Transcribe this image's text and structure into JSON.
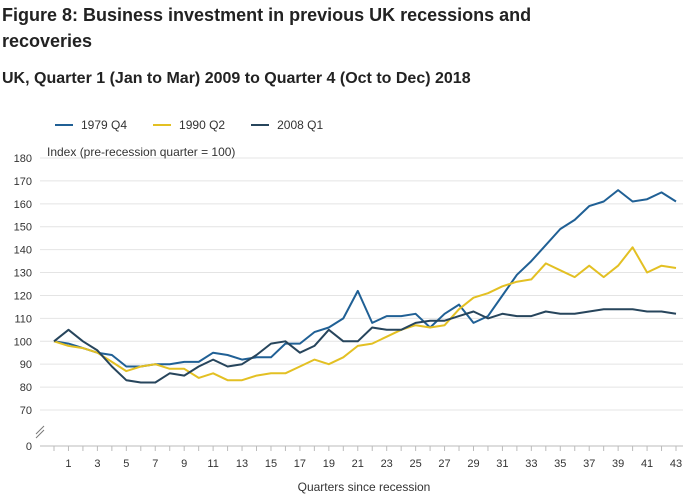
{
  "header": {
    "title": "Figure 8: Business investment in previous UK recessions and recoveries",
    "subtitle": "UK, Quarter 1 (Jan to Mar) 2009 to Quarter 4 (Oct to Dec) 2018"
  },
  "chart_data": {
    "type": "line",
    "ylabel": "Index (pre-recession quarter = 100)",
    "xlabel": "Quarters since recession",
    "x": [
      0,
      1,
      2,
      3,
      4,
      5,
      6,
      7,
      8,
      9,
      10,
      11,
      12,
      13,
      14,
      15,
      16,
      17,
      18,
      19,
      20,
      21,
      22,
      23,
      24,
      25,
      26,
      27,
      28,
      29,
      30,
      31,
      32,
      33,
      34,
      35,
      36,
      37,
      38,
      39,
      40,
      41,
      42,
      43
    ],
    "x_ticks": [
      1,
      3,
      5,
      7,
      9,
      11,
      13,
      15,
      17,
      19,
      21,
      23,
      25,
      27,
      29,
      31,
      33,
      35,
      37,
      39,
      41,
      43
    ],
    "y_ticks": [
      0,
      70,
      80,
      90,
      100,
      110,
      120,
      130,
      140,
      150,
      160,
      170,
      180
    ],
    "ylim": [
      0,
      180
    ],
    "y_axis_break": [
      0,
      70
    ],
    "legend_position": "top-left",
    "grid": "y",
    "series": [
      {
        "name": "1979 Q4",
        "color": "#206095",
        "values": [
          100,
          99,
          97,
          95,
          94,
          89,
          89,
          90,
          90,
          91,
          91,
          95,
          94,
          92,
          93,
          93,
          99,
          99,
          104,
          106,
          110,
          122,
          108,
          111,
          111,
          112,
          106,
          112,
          116,
          108,
          111,
          120,
          129,
          135,
          142,
          149,
          153,
          159,
          161,
          166,
          161,
          162,
          165,
          161
        ]
      },
      {
        "name": "1990 Q2",
        "color": "#e3c023",
        "values": [
          100,
          98,
          97,
          95,
          91,
          87,
          89,
          90,
          88,
          88,
          84,
          86,
          83,
          83,
          85,
          86,
          86,
          89,
          92,
          90,
          93,
          98,
          99,
          102,
          105,
          107,
          106,
          107,
          114,
          119,
          121,
          124,
          126,
          127,
          134,
          131,
          128,
          133,
          128,
          133,
          141,
          130,
          133,
          132
        ]
      },
      {
        "name": "2008 Q1",
        "color": "#27455c",
        "values": [
          100,
          105,
          100,
          96,
          89,
          83,
          82,
          82,
          86,
          85,
          89,
          92,
          89,
          90,
          94,
          99,
          100,
          95,
          98,
          105,
          100,
          100,
          106,
          105,
          105,
          108,
          109,
          109,
          111,
          113,
          110,
          112,
          111,
          111,
          113,
          112,
          112,
          113,
          114,
          114,
          114,
          113,
          113,
          112
        ]
      }
    ]
  }
}
